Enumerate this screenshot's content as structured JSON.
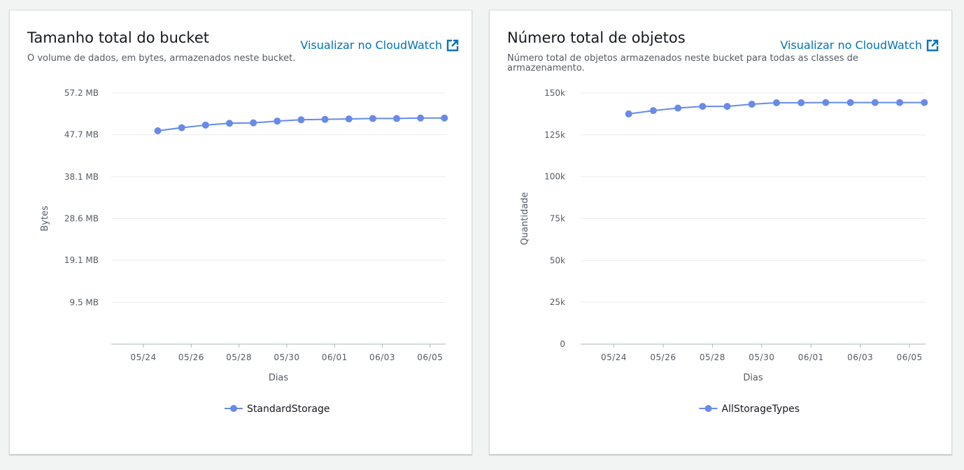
{
  "colors": {
    "series": "#688ae8",
    "link": "#0073bb",
    "grid": "#e9ebed"
  },
  "panels": [
    {
      "title": "Tamanho total do bucket",
      "subtitle": "O volume de dados, em bytes, armazenados neste bucket.",
      "link_label": "Visualizar no CloudWatch",
      "link_icon": "external-link-icon",
      "chart_data": {
        "type": "line",
        "ylabel": "Bytes",
        "xlabel": "Dias",
        "ylim": [
          0,
          57.2
        ],
        "yticks": [
          "57.2 MB",
          "47.7 MB",
          "38.1 MB",
          "28.6 MB",
          "19.1 MB",
          "9.5 MB"
        ],
        "yticks_values": [
          57.2,
          47.7,
          38.1,
          28.6,
          19.1,
          9.5
        ],
        "xticks": [
          "05/24",
          "05/26",
          "05/28",
          "05/30",
          "06/01",
          "06/03",
          "06/05"
        ],
        "xticks_values": [
          0,
          2,
          4,
          6,
          8,
          10,
          12
        ],
        "xlim": [
          -1.35,
          12.65
        ],
        "grid": true,
        "legend_position": "bottom",
        "series": [
          {
            "name": "StandardStorage",
            "x": [
              0.6,
              1.6,
              2.6,
              3.6,
              4.6,
              5.6,
              6.6,
              7.6,
              8.6,
              9.6,
              10.6,
              11.6,
              12.6
            ],
            "values": [
              48.6,
              49.3,
              49.9,
              50.3,
              50.4,
              50.8,
              51.1,
              51.2,
              51.3,
              51.4,
              51.4,
              51.5,
              51.5
            ]
          }
        ]
      }
    },
    {
      "title": "Número total de objetos",
      "subtitle": "Número total de objetos armazenados neste bucket para todas as classes de armazenamento.",
      "link_label": "Visualizar no CloudWatch",
      "link_icon": "external-link-icon",
      "chart_data": {
        "type": "line",
        "ylabel": "Quantidade",
        "xlabel": "Dias",
        "ylim": [
          0,
          150000
        ],
        "yticks": [
          "150k",
          "125k",
          "100k",
          "75k",
          "50k",
          "25k",
          "0"
        ],
        "yticks_values": [
          150000,
          125000,
          100000,
          75000,
          50000,
          25000,
          0
        ],
        "xticks": [
          "05/24",
          "05/26",
          "05/28",
          "05/30",
          "06/01",
          "06/03",
          "06/05"
        ],
        "xticks_values": [
          0,
          2,
          4,
          6,
          8,
          10,
          12
        ],
        "xlim": [
          -1.35,
          12.65
        ],
        "grid": true,
        "legend_position": "bottom",
        "series": [
          {
            "name": "AllStorageTypes",
            "x": [
              0.6,
              1.6,
              2.6,
              3.6,
              4.6,
              5.6,
              6.6,
              7.6,
              8.6,
              9.6,
              10.6,
              11.6,
              12.6
            ],
            "values": [
              137500,
              139500,
              141000,
              142000,
              142000,
              143300,
              144200,
              144200,
              144300,
              144300,
              144300,
              144300,
              144300
            ]
          }
        ]
      }
    }
  ]
}
